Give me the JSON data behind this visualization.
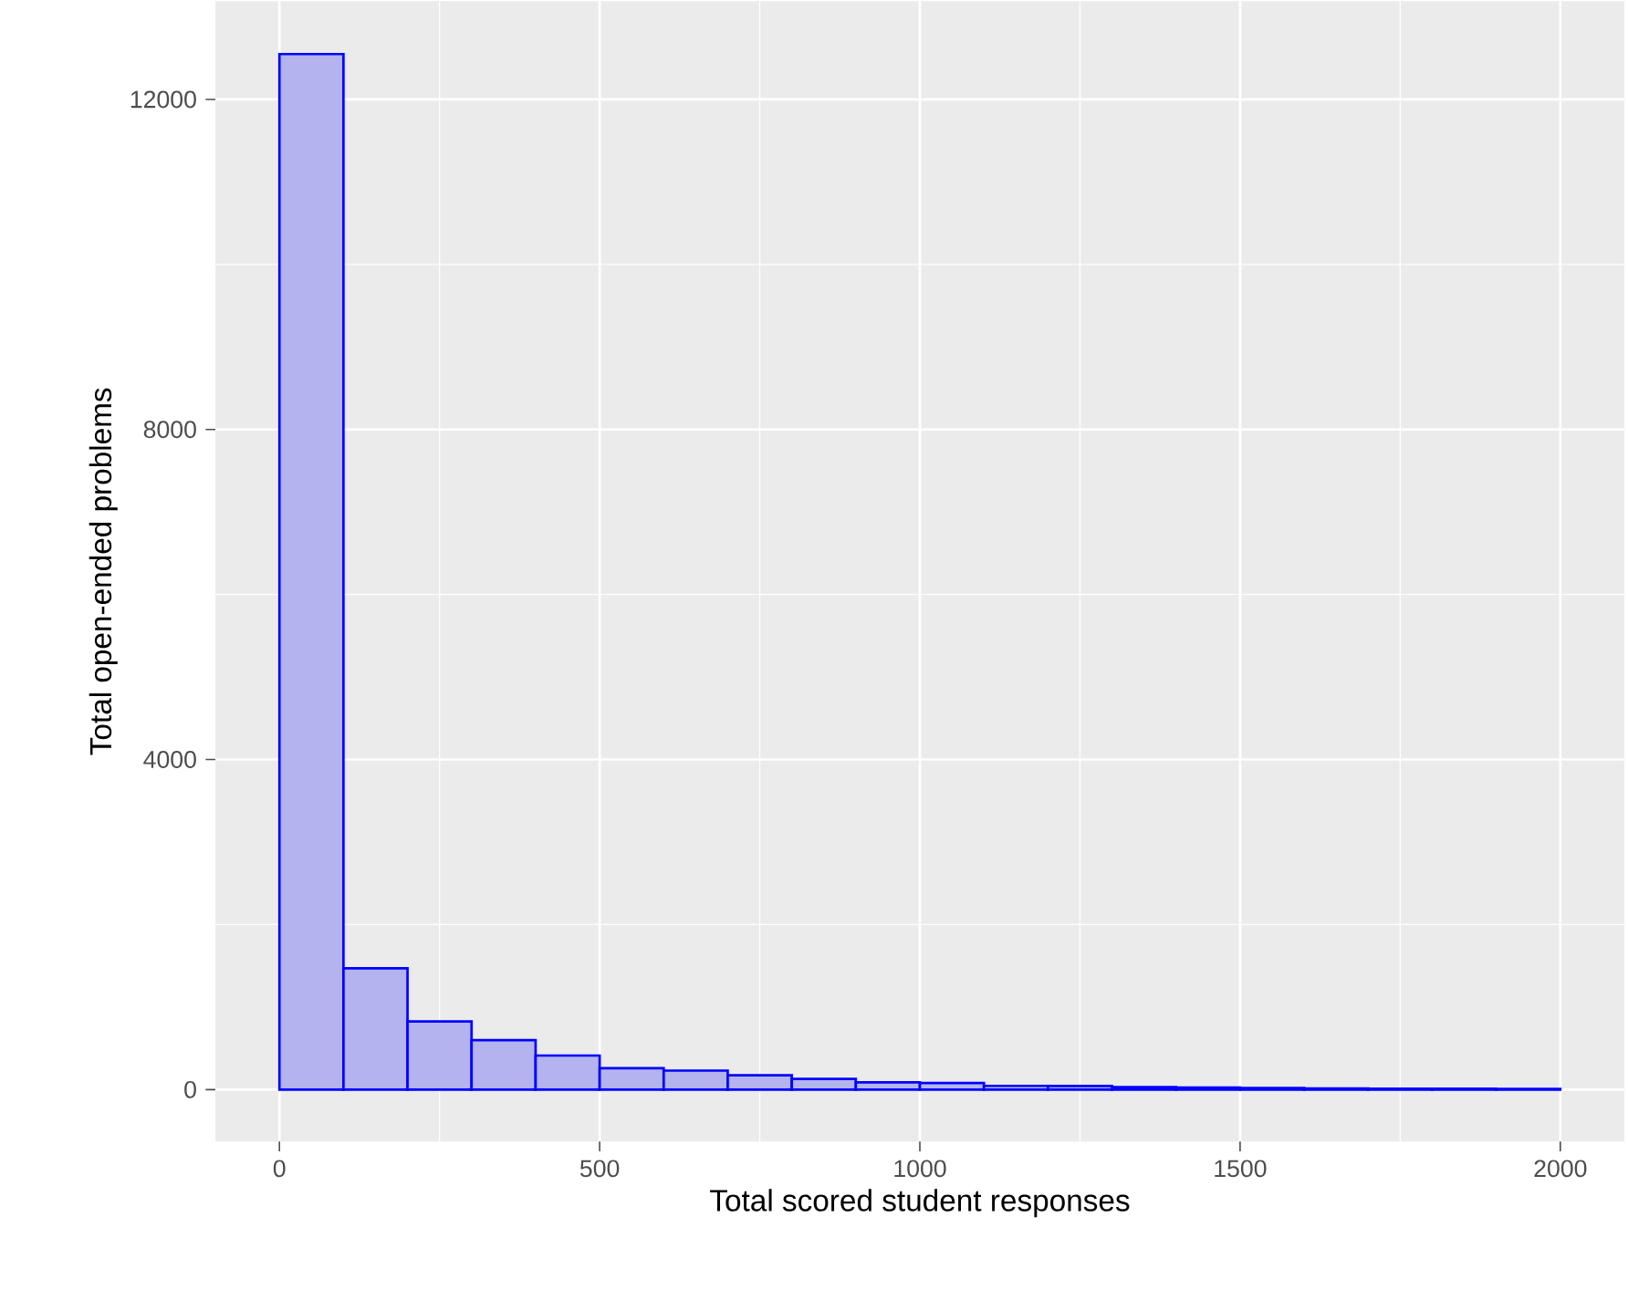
{
  "chart_data": {
    "type": "histogram",
    "xlabel": "Total scored student responses",
    "ylabel": "Total open-ended problems",
    "bins": [
      0,
      100,
      200,
      300,
      400,
      500,
      600,
      700,
      800,
      900,
      1000,
      1100,
      1200,
      1300,
      1400,
      1500,
      1600,
      1700,
      1800,
      1900,
      2000
    ],
    "values": [
      12550,
      1470,
      826,
      600,
      413,
      260,
      230,
      174,
      130,
      87,
      80,
      45,
      43,
      30,
      25,
      20,
      15,
      12,
      10,
      8
    ],
    "color": "#0000ff",
    "xlim": [
      -100,
      2100
    ],
    "ylim": [
      -630,
      13190
    ],
    "xticks": [
      0,
      500,
      1000,
      1500,
      2000
    ],
    "yticks": [
      0,
      4000,
      8000,
      12000
    ],
    "grid": true
  }
}
